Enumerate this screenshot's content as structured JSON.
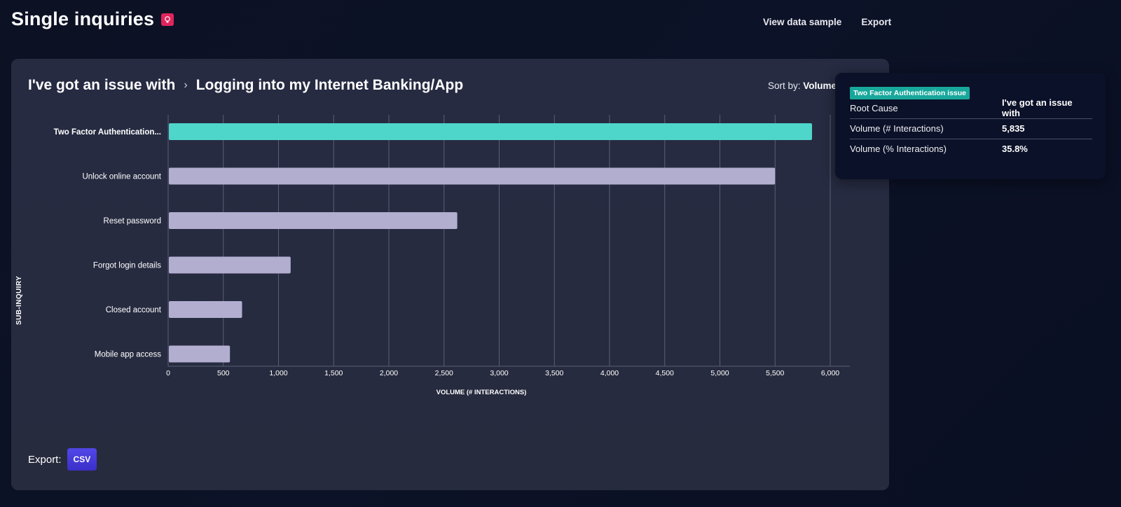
{
  "header": {
    "title": "Single inquiries",
    "icon": "lightbulb-icon",
    "links": {
      "view_sample": "View data sample",
      "export": "Export"
    }
  },
  "card": {
    "breadcrumb": {
      "parent": "I've got an issue with",
      "separator": "›",
      "current": "Logging into my Internet Banking/App"
    },
    "sort": {
      "label": "Sort by:",
      "value": "Volume"
    },
    "export": {
      "label": "Export:",
      "csv": "CSV"
    }
  },
  "chart_data": {
    "type": "bar",
    "orientation": "horizontal",
    "categories": [
      "Two Factor Authentication...",
      "Unlock online account",
      "Reset password",
      "Forgot login details",
      "Closed account",
      "Mobile app access"
    ],
    "values": [
      5835,
      5500,
      2620,
      1110,
      670,
      560
    ],
    "highlighted": 0,
    "xlabel": "VOLUME (# INTERACTIONS)",
    "ylabel": "SUB-INQUIRY",
    "xlim": [
      0,
      6000
    ],
    "xticks": [
      0,
      500,
      1000,
      1500,
      2000,
      2500,
      3000,
      3500,
      4000,
      4500,
      5000,
      5500,
      6000
    ],
    "xtick_labels": [
      "0",
      "500",
      "1,000",
      "1,500",
      "2,000",
      "2,500",
      "3,000",
      "3,500",
      "4,000",
      "4,500",
      "5,000",
      "5,500",
      "6,000"
    ],
    "grid": true,
    "colors": {
      "highlight": "#4fd6cb",
      "bar": "#b2aed0",
      "grid": "#5a5f77"
    }
  },
  "tooltip": {
    "badge": "Two Factor Authentication issue",
    "rows": [
      {
        "label": "Root Cause",
        "value": "I've got an issue with"
      },
      {
        "label": "Volume (# Interactions)",
        "value": "5,835"
      },
      {
        "label": "Volume (% Interactions)",
        "value": "35.8%"
      }
    ]
  }
}
